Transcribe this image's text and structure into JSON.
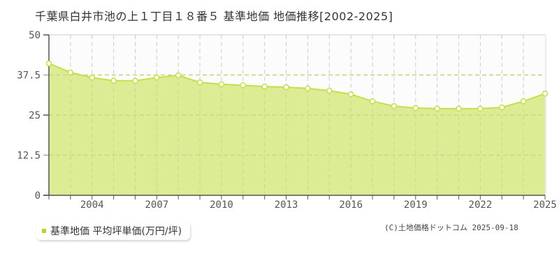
{
  "header": {
    "title": "千葉県白井市池の上１丁目１８番５ 基準地価 地価推移[2002-2025]"
  },
  "legend": {
    "label": "基準地価 平均坪単価(万円/坪)",
    "color": "#b5d62e"
  },
  "footer": {
    "copyright": "(C)土地価格ドットコム 2025-09-18"
  },
  "colors": {
    "area_fill": "#dcec94",
    "line": "#c3df4a",
    "grid": "#cccccc",
    "axis": "#555555"
  },
  "chart_data": {
    "type": "area",
    "title": "千葉県白井市池の上１丁目１８番５ 基準地価 地価推移[2002-2025]",
    "xlabel": "",
    "ylabel": "",
    "ylim": [
      0,
      50
    ],
    "yticks": [
      0,
      12.5,
      25,
      37.5,
      50
    ],
    "ytick_labels": [
      "0",
      "12.5",
      "25",
      "37.5",
      "50"
    ],
    "xtick_labels": [
      "2004",
      "2007",
      "2010",
      "2013",
      "2016",
      "2019",
      "2022",
      "2025"
    ],
    "grid": true,
    "legend_position": "bottom-left",
    "x": [
      2002,
      2003,
      2004,
      2005,
      2006,
      2007,
      2008,
      2009,
      2010,
      2011,
      2012,
      2013,
      2014,
      2015,
      2016,
      2017,
      2018,
      2019,
      2020,
      2021,
      2022,
      2023,
      2024,
      2025
    ],
    "series": [
      {
        "name": "基準地価 平均坪単価(万円/坪)",
        "values": [
          41.1,
          38.3,
          36.7,
          35.7,
          35.7,
          36.7,
          37.4,
          35.2,
          34.6,
          34.3,
          33.9,
          33.7,
          33.3,
          32.6,
          31.5,
          29.3,
          27.8,
          27.2,
          27.0,
          27.0,
          27.0,
          27.4,
          29.3,
          31.7
        ]
      }
    ]
  }
}
